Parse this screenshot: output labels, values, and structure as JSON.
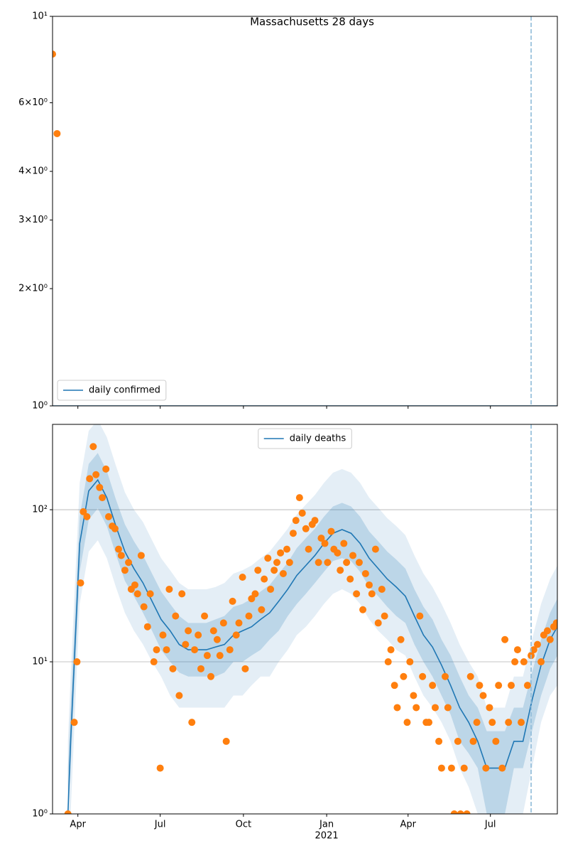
{
  "chart_data": [
    {
      "type": "line",
      "title": "Massachusetts 28 days",
      "log_y": true,
      "grid": false,
      "legend": "lower left",
      "show_xtick_labels": false,
      "xlim": [
        0,
        558
      ],
      "xticks": [
        28,
        119,
        211,
        303,
        393,
        484
      ],
      "ylim": [
        1,
        10
      ],
      "yticks": [
        {
          "value": 1,
          "label": "10⁰"
        },
        {
          "value": 2,
          "label": "2×10⁰"
        },
        {
          "value": 3,
          "label": "3×10⁰"
        },
        {
          "value": 4,
          "label": "4×10⁰"
        },
        {
          "value": 6,
          "label": "6×10⁰"
        },
        {
          "value": 10,
          "label": "10¹"
        }
      ],
      "vlines": [
        {
          "x": 529,
          "color": "#8fbbd9"
        }
      ],
      "series": [
        {
          "name": "daily confirmed",
          "color": "#1f77b4",
          "style": "line",
          "x": [
            0,
            558
          ],
          "values": [
            1,
            1
          ]
        },
        {
          "color": "#ff7f0e",
          "style": "markers",
          "x": [
            0,
            5
          ],
          "values": [
            8,
            5
          ]
        }
      ]
    },
    {
      "type": "line",
      "log_y": true,
      "grid": true,
      "legend": "upper center",
      "show_xtick_labels": true,
      "xlim": [
        0,
        558
      ],
      "xticks": [
        {
          "value": 28,
          "label": "Apr"
        },
        {
          "value": 119,
          "label": "Jul"
        },
        {
          "value": 211,
          "label": "Oct"
        },
        {
          "value": 303,
          "label": "Jan"
        },
        {
          "value": 393,
          "label": "Apr"
        },
        {
          "value": 484,
          "label": "Jul"
        }
      ],
      "x_offset_label": "2021",
      "x_offset_at": 303,
      "ylim": [
        1,
        364
      ],
      "yticks": [
        {
          "value": 1,
          "label": "10⁰"
        },
        {
          "value": 10,
          "label": "10¹"
        },
        {
          "value": 100,
          "label": "10²"
        }
      ],
      "vlines": [
        {
          "x": 529,
          "color": "#8fbbd9"
        }
      ],
      "x": [
        17,
        20,
        30,
        40,
        50,
        60,
        70,
        80,
        90,
        100,
        110,
        120,
        130,
        140,
        150,
        160,
        170,
        180,
        190,
        200,
        210,
        220,
        230,
        240,
        250,
        260,
        270,
        280,
        290,
        300,
        310,
        320,
        330,
        340,
        350,
        360,
        370,
        380,
        390,
        400,
        410,
        420,
        430,
        440,
        450,
        460,
        470,
        480,
        490,
        500,
        510,
        520,
        530,
        540,
        550,
        558
      ],
      "bands": [
        {
          "color": "#1f77b4",
          "opacity": 0.12,
          "lower": [
            1,
            1,
            24,
            53,
            63,
            48,
            31,
            21,
            16,
            13,
            10,
            8,
            6,
            5,
            5,
            5,
            5,
            5,
            5,
            6,
            6,
            7,
            8,
            8,
            10,
            12,
            15,
            17,
            20,
            24,
            28,
            30,
            28,
            24,
            19,
            16,
            14,
            12,
            11,
            8,
            6,
            5,
            4,
            3,
            2,
            1.5,
            1,
            1,
            1,
            1,
            1,
            1,
            2,
            4,
            6,
            7
          ],
          "upper": [
            3,
            8,
            150,
            330,
            390,
            300,
            195,
            130,
            100,
            83,
            63,
            48,
            40,
            33,
            30,
            30,
            30,
            31,
            33,
            38,
            40,
            43,
            48,
            53,
            63,
            75,
            93,
            108,
            125,
            150,
            175,
            185,
            175,
            150,
            120,
            103,
            88,
            78,
            68,
            50,
            38,
            31,
            24,
            18,
            13,
            10,
            8,
            5,
            5,
            5,
            8,
            8,
            14,
            24,
            35,
            43
          ]
        },
        {
          "color": "#1f77b4",
          "opacity": 0.2,
          "lower": [
            1,
            2,
            39,
            86,
            102,
            78,
            51,
            34,
            27,
            21,
            16,
            12,
            10,
            8.5,
            8,
            8,
            8,
            8,
            8.5,
            10,
            10,
            11,
            12,
            14,
            16,
            20,
            24,
            28,
            33,
            39,
            46,
            48,
            46,
            39,
            31,
            27,
            23,
            20,
            18,
            13,
            10,
            8,
            6,
            4.5,
            3,
            2.5,
            2,
            1,
            1,
            1,
            2,
            2,
            3.5,
            6,
            9,
            11
          ],
          "upper": [
            2,
            5,
            90,
            200,
            236,
            180,
            117,
            80,
            62,
            50,
            38,
            29,
            24,
            20,
            18,
            18,
            18,
            19,
            20,
            23,
            24,
            26,
            29,
            32,
            38,
            45,
            56,
            65,
            75,
            90,
            105,
            111,
            105,
            90,
            72,
            62,
            53,
            47,
            41,
            30,
            23,
            19,
            14,
            11,
            8,
            6,
            5,
            3.5,
            3.5,
            3.5,
            5,
            5,
            8.5,
            14,
            21,
            26
          ]
        }
      ],
      "series": [
        {
          "name": "daily deaths",
          "color": "#1f77b4",
          "style": "line",
          "values": [
            1,
            3,
            60,
            133,
            157,
            120,
            78,
            53,
            41,
            33,
            25,
            19,
            16,
            13,
            12,
            12,
            12,
            12.5,
            13,
            15,
            16,
            17,
            19,
            21,
            25,
            30,
            37,
            43,
            50,
            60,
            70,
            74,
            70,
            60,
            48,
            41,
            35,
            31,
            27,
            20,
            15,
            12.5,
            9.5,
            7,
            5,
            4,
            3,
            2,
            2,
            2,
            3,
            3,
            5.6,
            9.5,
            14,
            17
          ]
        },
        {
          "color": "#ff7f0e",
          "style": "markers",
          "x": [
            17,
            24,
            27,
            31,
            34,
            38,
            41,
            45,
            48,
            52,
            55,
            59,
            62,
            66,
            69,
            73,
            76,
            80,
            84,
            87,
            91,
            94,
            98,
            101,
            105,
            108,
            112,
            115,
            119,
            122,
            126,
            129,
            133,
            136,
            140,
            143,
            147,
            150,
            154,
            157,
            161,
            164,
            168,
            171,
            175,
            178,
            182,
            185,
            189,
            192,
            196,
            199,
            203,
            206,
            210,
            213,
            217,
            220,
            224,
            227,
            231,
            234,
            238,
            241,
            245,
            248,
            252,
            255,
            259,
            262,
            266,
            269,
            273,
            276,
            280,
            283,
            287,
            290,
            294,
            297,
            301,
            304,
            308,
            311,
            315,
            318,
            322,
            325,
            329,
            332,
            336,
            339,
            343,
            346,
            350,
            353,
            357,
            360,
            364,
            367,
            371,
            374,
            378,
            381,
            385,
            388,
            392,
            395,
            399,
            402,
            406,
            409,
            413,
            416,
            420,
            423,
            427,
            430,
            434,
            437,
            441,
            444,
            448,
            451,
            455,
            458,
            462,
            465,
            469,
            472,
            476,
            479,
            483,
            486,
            490,
            493,
            497,
            500,
            504,
            507,
            511,
            514,
            518,
            521,
            525,
            529,
            532,
            536,
            540,
            543,
            547,
            550,
            554,
            557
          ],
          "values": [
            1,
            4,
            10,
            33,
            97,
            90,
            160,
            260,
            170,
            140,
            120,
            185,
            90,
            78,
            75,
            55,
            50,
            40,
            45,
            30,
            32,
            28,
            50,
            23,
            17,
            28,
            10,
            12,
            2,
            15,
            12,
            30,
            9,
            20,
            6,
            28,
            13,
            16,
            4,
            12,
            15,
            9,
            20,
            11,
            8,
            16,
            14,
            11,
            18,
            3,
            12,
            25,
            15,
            18,
            36,
            9,
            20,
            26,
            28,
            40,
            22,
            35,
            48,
            30,
            40,
            45,
            52,
            38,
            55,
            45,
            70,
            85,
            120,
            95,
            75,
            55,
            80,
            85,
            45,
            65,
            60,
            45,
            72,
            55,
            52,
            40,
            60,
            45,
            35,
            50,
            28,
            45,
            22,
            38,
            32,
            28,
            55,
            18,
            30,
            20,
            10,
            12,
            7,
            5,
            14,
            8,
            4,
            10,
            6,
            5,
            20,
            8,
            4,
            4,
            7,
            5,
            3,
            2,
            8,
            5,
            2,
            1,
            3,
            1,
            2,
            1,
            8,
            3,
            4,
            7,
            6,
            2,
            5,
            4,
            3,
            7,
            2,
            14,
            4,
            7,
            10,
            12,
            4,
            10,
            7,
            11,
            12,
            13,
            10,
            15,
            16,
            14,
            17,
            18
          ]
        }
      ]
    }
  ]
}
